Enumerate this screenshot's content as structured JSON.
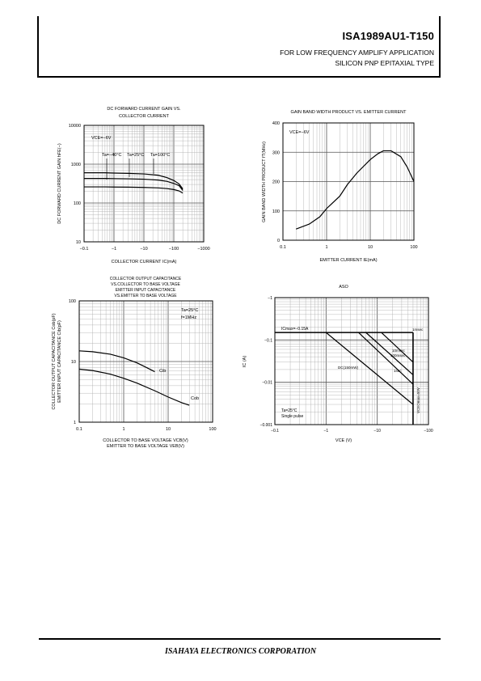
{
  "header": {
    "part_number": "ISA1989AU1-T150",
    "application": "FOR LOW FREQUENCY AMPLIFY APPLICATION",
    "device_type": "SILICON PNP EPITAXIAL TYPE"
  },
  "footer": {
    "company": "ISAHAYA ELECTRONICS CORPORATION"
  },
  "chart_data": [
    {
      "id": "hfe",
      "type": "line",
      "title_lines": [
        "DC FORWARD CURRENT GAIN VS.",
        "COLLECTOR CURRENT"
      ],
      "xlabel": "COLLECTOR CURRENT  IC(mA)",
      "ylabel": "DC FORWARD CURRENT GAIN  hFE(−)",
      "x_scale": "log",
      "y_scale": "log",
      "xlim": [
        0.1,
        1000
      ],
      "ylim": [
        10,
        10000
      ],
      "x_ticks": [
        "−0.1",
        "−1",
        "−10",
        "−100",
        "−1000"
      ],
      "y_ticks": [
        "10",
        "100",
        "1000",
        "10000"
      ],
      "annotations": [
        "VCE=−6V",
        "Ta=−40°C",
        "Ta=25°C",
        "Ta=100°C"
      ],
      "series": [
        {
          "x": [
            0.1,
            0.5,
            1,
            3,
            10,
            30,
            60,
            100,
            150,
            200
          ],
          "y": [
            600,
            600,
            590,
            580,
            560,
            520,
            450,
            380,
            310,
            230
          ]
        },
        {
          "x": [
            0.1,
            0.5,
            1,
            3,
            10,
            30,
            60,
            100,
            150,
            200
          ],
          "y": [
            430,
            430,
            425,
            420,
            410,
            390,
            360,
            320,
            280,
            210
          ]
        },
        {
          "x": [
            0.1,
            0.5,
            1,
            3,
            10,
            30,
            60,
            100,
            150,
            200
          ],
          "y": [
            260,
            260,
            258,
            256,
            252,
            245,
            235,
            222,
            205,
            180
          ]
        }
      ]
    },
    {
      "id": "ft",
      "type": "line",
      "title_lines": [
        "GAIN BAND WIDTH PRODUCT VS. EMITTER CURRENT"
      ],
      "xlabel": "EMITTER CURRENT  IE(mA)",
      "ylabel": "GAIN BAND WIDTH PRODUCT  fT(MHz)",
      "x_scale": "log",
      "y_scale": "linear",
      "xlim": [
        0.1,
        100
      ],
      "ylim": [
        0,
        400
      ],
      "x_ticks": [
        "0.1",
        "1",
        "10",
        "100"
      ],
      "y_ticks": [
        "0",
        "100",
        "200",
        "300",
        "400"
      ],
      "annotations": [
        "VCE=−6V"
      ],
      "series": [
        {
          "x": [
            0.2,
            0.4,
            0.7,
            1,
            2,
            3,
            5,
            10,
            15,
            20,
            30,
            50,
            70,
            100
          ],
          "y": [
            38,
            55,
            80,
            108,
            150,
            190,
            230,
            275,
            295,
            305,
            305,
            285,
            250,
            200
          ]
        }
      ]
    },
    {
      "id": "cap",
      "type": "line",
      "title_lines": [
        "COLLECTOR OUTPUT CAPACITANCE",
        "VS.COLLECTOR TO BASE VOLTAGE",
        "EMITTER INPUT CAPACITANCE",
        "VS.EMITTER TO BASE VOLTAGE"
      ],
      "xlabel_lines": [
        "COLLECTOR TO BASE VOLTAGE  VCB(V)",
        "EMITTER TO BASE VOLTAGE  VEB(V)"
      ],
      "ylabel_lines": [
        "COLLECTOR OUTPUT CAPACITANCE  Cob(pF)",
        "EMITTER INPUT CAPACITANCE  Cib(pF)"
      ],
      "x_scale": "log",
      "y_scale": "log",
      "xlim": [
        0.1,
        100
      ],
      "ylim": [
        1,
        100
      ],
      "x_ticks": [
        "0.1",
        "1",
        "10",
        "100"
      ],
      "y_ticks": [
        "1",
        "10",
        "100"
      ],
      "annotations": [
        "Ta=25°C",
        "f=1MHz"
      ],
      "series": [
        {
          "name": "Cib",
          "x": [
            0.1,
            0.2,
            0.5,
            1,
            2,
            3,
            5
          ],
          "y": [
            15,
            14.5,
            13.2,
            11.5,
            9.5,
            8.2,
            6.8
          ]
        },
        {
          "name": "Cob",
          "x": [
            0.1,
            0.2,
            0.5,
            1,
            2,
            5,
            10,
            20,
            30
          ],
          "y": [
            7.5,
            7.1,
            6.2,
            5.3,
            4.4,
            3.3,
            2.6,
            2.1,
            1.9
          ]
        }
      ]
    },
    {
      "id": "aso",
      "type": "line",
      "title_lines": [
        "ASO"
      ],
      "xlabel": "VCE  (V)",
      "ylabel": "IC  (A)",
      "x_scale": "log",
      "y_scale": "log",
      "xlim": [
        0.1,
        100
      ],
      "ylim": [
        0.001,
        1
      ],
      "x_ticks": [
        "−0.1",
        "−1",
        "−10",
        "−100"
      ],
      "y_ticks": [
        "−0.001",
        "−0.01",
        "−0.1",
        "−1"
      ],
      "annotations": [
        "ICmax=−0.15A",
        "VCEOmax=50V",
        "Ta=25°C",
        "Single pulse",
        "1msec",
        "10msec",
        "100msec",
        "1sec",
        "DC(150mW)"
      ],
      "series": [
        {
          "name": "DC(150mW)",
          "x": [
            1,
            50
          ],
          "y": [
            0.15,
            0.003
          ]
        },
        {
          "name": "1sec",
          "x": [
            4.3,
            50
          ],
          "y": [
            0.15,
            0.009
          ]
        },
        {
          "name": "100msec",
          "x": [
            6,
            50
          ],
          "y": [
            0.15,
            0.015
          ]
        },
        {
          "name": "10msec",
          "x": [
            12,
            50
          ],
          "y": [
            0.15,
            0.03
          ]
        },
        {
          "name": "1msec",
          "x": [
            50
          ],
          "y": [
            0.15
          ]
        }
      ],
      "limits": {
        "ic_max": 0.15,
        "vceo_max": 50
      }
    }
  ]
}
